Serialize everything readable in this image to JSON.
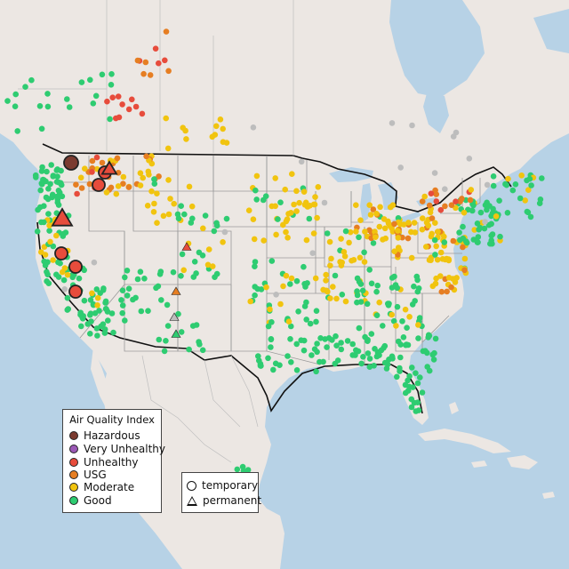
{
  "legend": {
    "title": "Air Quality Index",
    "categories": [
      {
        "label": "Hazardous",
        "color": "#7b3b30"
      },
      {
        "label": "Very Unhealthy",
        "color": "#9b59b6"
      },
      {
        "label": "Unhealthy",
        "color": "#e74c3c"
      },
      {
        "label": "USG",
        "color": "#e67e22"
      },
      {
        "label": "Moderate",
        "color": "#f1c40f"
      },
      {
        "label": "Good",
        "color": "#2ecc71"
      }
    ],
    "no_data_color": "#bdbdbd"
  },
  "monitor_types": [
    {
      "label": "temporary",
      "icon": "circle-icon"
    },
    {
      "label": "permanent",
      "icon": "triangle-icon"
    }
  ]
}
